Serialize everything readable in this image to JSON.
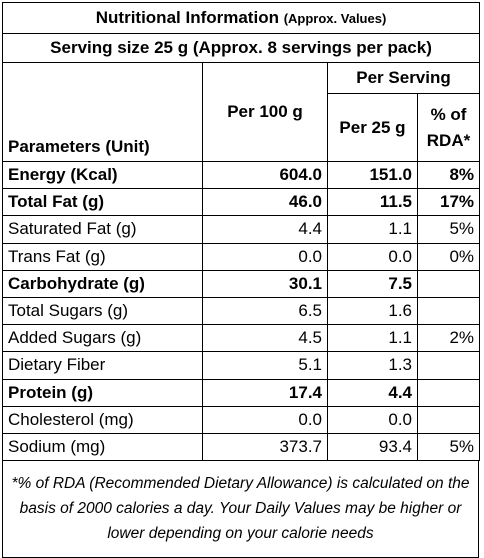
{
  "title": {
    "main": "Nutritional Information",
    "note": "(Approx. Values)"
  },
  "serving_line": "Serving size 25 g (Approx. 8 servings per pack)",
  "headers": {
    "parameters": "Parameters (Unit)",
    "per_100g": "Per 100 g",
    "per_serving": "Per Serving",
    "per_25g": "Per 25 g",
    "rda": "% of RDA*"
  },
  "rows": [
    {
      "name": "Energy (Kcal)",
      "per100": "604.0",
      "per25": "151.0",
      "rda": "8%",
      "bold": true
    },
    {
      "name": "Total Fat (g)",
      "per100": "46.0",
      "per25": "11.5",
      "rda": "17%",
      "bold": true
    },
    {
      "name": "Saturated Fat (g)",
      "per100": "4.4",
      "per25": "1.1",
      "rda": "5%",
      "bold": false
    },
    {
      "name": "Trans Fat (g)",
      "per100": "0.0",
      "per25": "0.0",
      "rda": "0%",
      "bold": false
    },
    {
      "name": "Carbohydrate (g)",
      "per100": "30.1",
      "per25": "7.5",
      "rda": "",
      "bold": true
    },
    {
      "name": "Total Sugars (g)",
      "per100": "6.5",
      "per25": "1.6",
      "rda": "",
      "bold": false
    },
    {
      "name": "Added Sugars (g)",
      "per100": "4.5",
      "per25": "1.1",
      "rda": "2%",
      "bold": false
    },
    {
      "name": "Dietary Fiber",
      "per100": "5.1",
      "per25": "1.3",
      "rda": "",
      "bold": false
    },
    {
      "name": "Protein (g)",
      "per100": "17.4",
      "per25": "4.4",
      "rda": "",
      "bold": true
    },
    {
      "name": "Cholesterol (mg)",
      "per100": "0.0",
      "per25": "0.0",
      "rda": "",
      "bold": false
    },
    {
      "name": "Sodium (mg)",
      "per100": "373.7",
      "per25": "93.4",
      "rda": "5%",
      "bold": false
    }
  ],
  "footnote": "*% of RDA (Recommended Dietary Allowance) is calculated on the basis of 2000 calories a day. Your Daily Values may be higher or lower depending on your calorie needs"
}
